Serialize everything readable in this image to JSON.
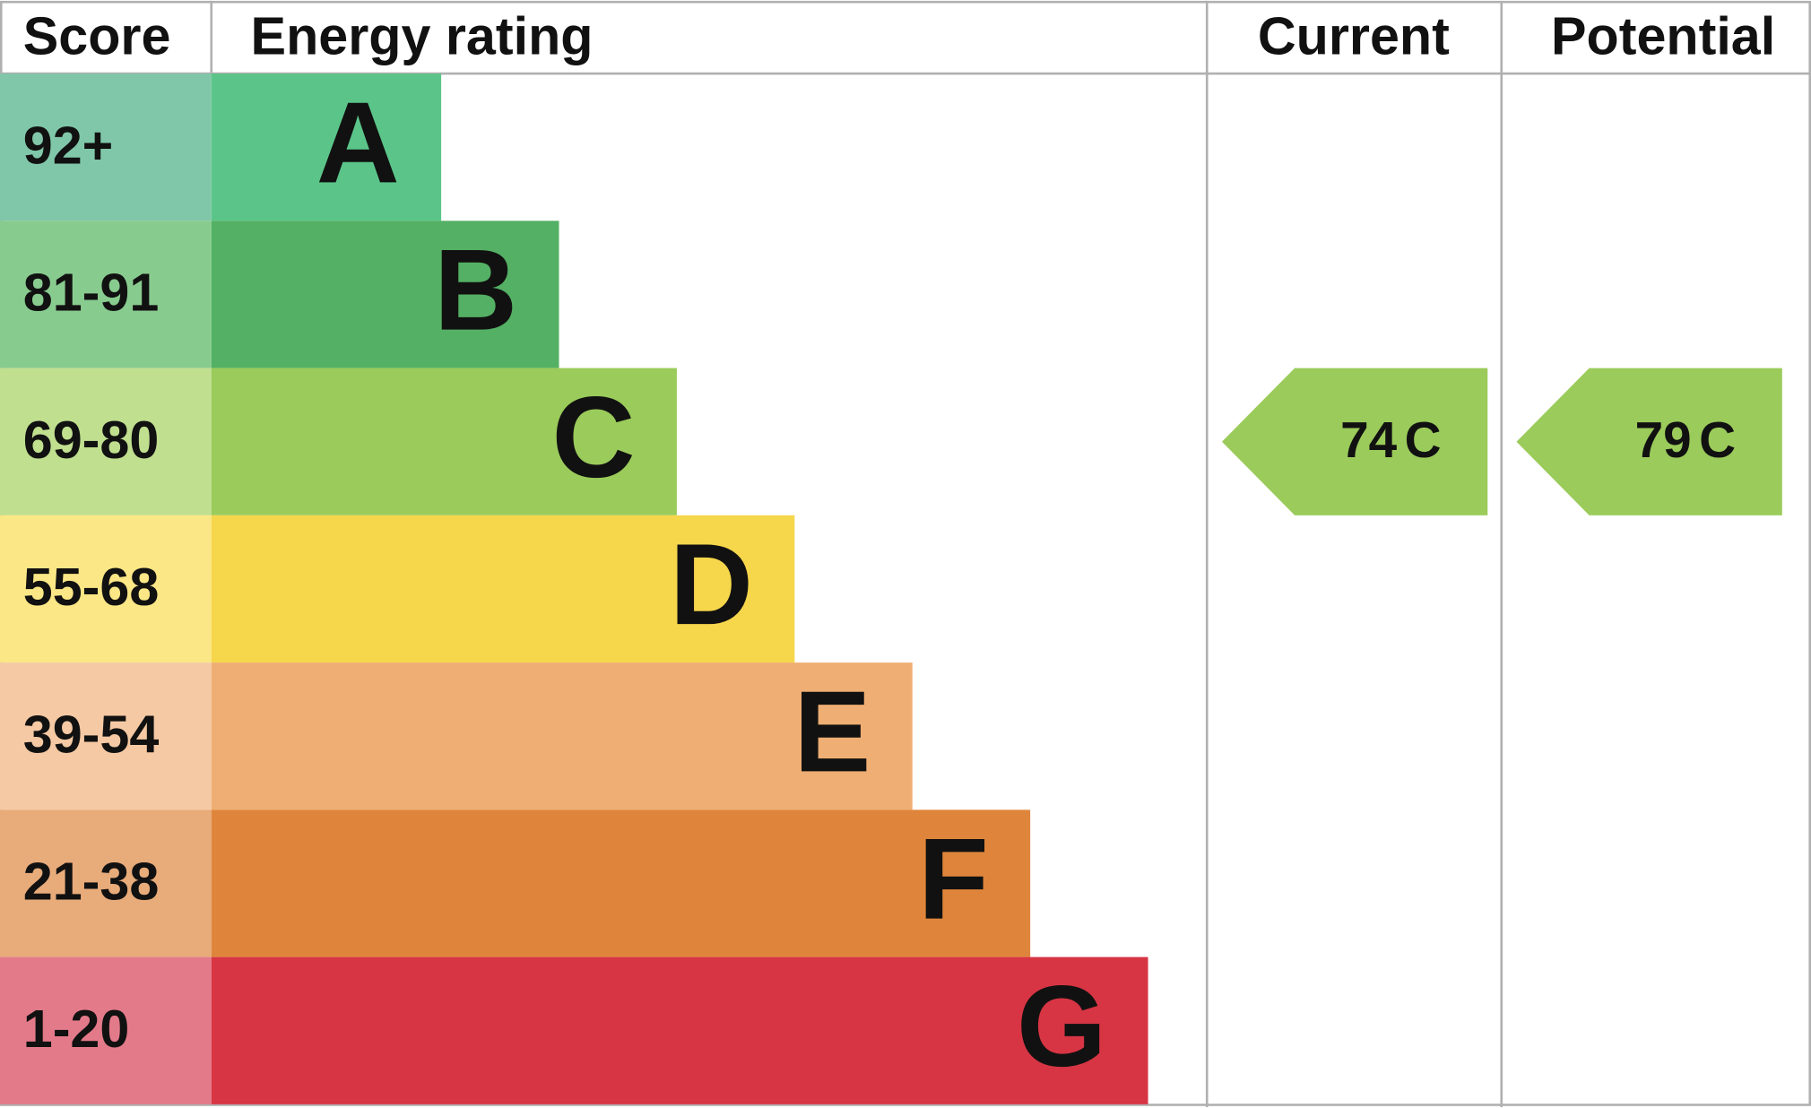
{
  "header": {
    "score": "Score",
    "rating": "Energy rating",
    "current": "Current",
    "potential": "Potential"
  },
  "bands": [
    {
      "score": "92+",
      "letter": "A",
      "score_color": "#80c7a9",
      "color": "#5bc589"
    },
    {
      "score": "81-91",
      "letter": "B",
      "score_color": "#88cb8f",
      "color": "#54b064"
    },
    {
      "score": "69-80",
      "letter": "C",
      "score_color": "#c0df8f",
      "color": "#9bcb5b"
    },
    {
      "score": "55-68",
      "letter": "D",
      "score_color": "#fbe785",
      "color": "#f6d64b"
    },
    {
      "score": "39-54",
      "letter": "E",
      "score_color": "#f5c9a3",
      "color": "#efae73"
    },
    {
      "score": "21-38",
      "letter": "F",
      "score_color": "#e8ab7a",
      "color": "#df853b"
    },
    {
      "score": "1-20",
      "letter": "G",
      "score_color": "#e37a8a",
      "color": "#d73544"
    }
  ],
  "current": {
    "value": 74,
    "letter": "C"
  },
  "potential": {
    "value": 79,
    "letter": "C"
  }
}
